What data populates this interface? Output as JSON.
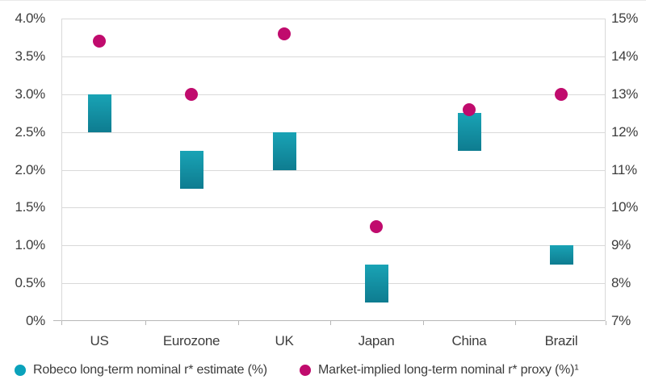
{
  "colors": {
    "bar_teal_top": "#19a3b5",
    "bar_teal_bottom": "#0e7c90",
    "dot_magenta": "#c00b6d",
    "legend_teal": "#0aa2bb",
    "gridline": "#d9d9d9",
    "axis_line": "#b7b7b7",
    "text": "#3d3d3d"
  },
  "legend": {
    "items": [
      {
        "label": "Robeco long-term nominal r* estimate (%)",
        "color": "#0aa2bb"
      },
      {
        "label": "Market-implied long-term nominal r* proxy (%)¹",
        "color": "#c00b6d"
      }
    ]
  },
  "chart_data": {
    "type": "range-bar + scatter, dual y-axis",
    "title": "",
    "categories": [
      "US",
      "Eurozone",
      "UK",
      "Japan",
      "China",
      "Brazil"
    ],
    "left_axis": {
      "min": 0,
      "max": 4,
      "tick_values": [
        4.0,
        3.5,
        3.0,
        2.5,
        2.0,
        1.5,
        1.0,
        0.5,
        0
      ],
      "tick_labels": [
        "4.0%",
        "3.5%",
        "3.0%",
        "2.5%",
        "2.0%",
        "1.5%",
        "1.0%",
        "0.5%",
        "0%"
      ]
    },
    "right_axis": {
      "min": 7,
      "max": 15,
      "tick_values": [
        15,
        14,
        13,
        12,
        11,
        10,
        9,
        8,
        7
      ],
      "tick_labels": [
        "15%",
        "14%",
        "13%",
        "12%",
        "11%",
        "10%",
        "9%",
        "8%",
        "7%"
      ]
    },
    "grid": "horizontal only",
    "legend_position": "bottom-left",
    "series": [
      {
        "name": "Robeco long-term nominal r* estimate (%)",
        "marker": "range-bar",
        "color_top": "#19a3b5",
        "color_bottom": "#0e7c90",
        "ranges_left_axis_pct": [
          [
            2.5,
            3.0
          ],
          [
            1.75,
            2.25
          ],
          [
            2.0,
            2.5
          ],
          [
            0.25,
            0.75
          ],
          [
            2.25,
            2.75
          ],
          [
            0.75,
            1.0
          ]
        ],
        "ranges_right_axis_pct": [
          [
            12.0,
            13.0
          ],
          [
            10.5,
            11.5
          ],
          [
            11.0,
            12.0
          ],
          [
            7.5,
            8.5
          ],
          [
            11.5,
            12.5
          ],
          [
            8.5,
            9.0
          ]
        ],
        "note": "Brazil range is read on the right-hand axis (8.5%-9%)"
      },
      {
        "name": "Market-implied long-term nominal r* proxy (%)¹",
        "marker": "dot",
        "color": "#c00b6d",
        "values_left_axis_pct": [
          3.7,
          3.0,
          3.8,
          1.25,
          2.8,
          3.0
        ],
        "values_right_axis_pct": [
          14.4,
          13.0,
          14.6,
          9.5,
          12.6,
          13.0
        ],
        "note": "Brazil dot is read on the right-hand axis (13%)"
      }
    ]
  }
}
